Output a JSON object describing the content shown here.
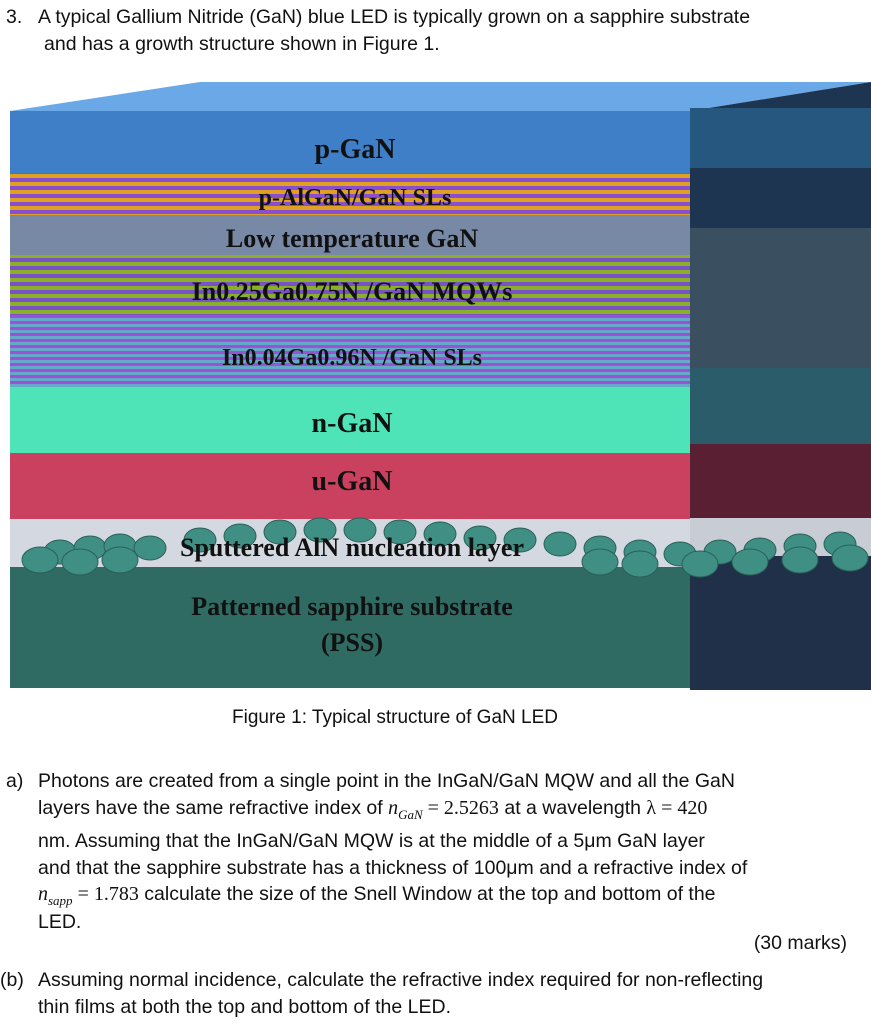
{
  "question": {
    "number": "3.",
    "line1": "A typical Gallium Nitride (GaN) blue LED is typically grown on a sapphire substrate",
    "line2": "and has a growth structure shown in Figure 1."
  },
  "figure": {
    "layers": {
      "p_gan": "p-GaN",
      "p_algan": "p-AlGaN/GaN SLs",
      "low_temp": "Low temperature GaN",
      "mqw": "In0.25Ga0.75N /GaN MQWs",
      "sls": "In0.04Ga0.96N /GaN SLs",
      "n_gan": "n-GaN",
      "u_gan": "u-GaN",
      "nucleation": "Sputtered AlN nucleation layer",
      "pss_line1": "Patterned sapphire substrate",
      "pss_line2": "(PSS)"
    },
    "caption": "Figure 1: Typical structure of GaN LED"
  },
  "part_a": {
    "label": "a)",
    "line1": "Photons are created from a single point in the InGaN/GaN MQW and all the GaN",
    "line2_a": "layers have the same refractive index of ",
    "line2_math1": "n",
    "line2_sub1": "GaN",
    "line2_math2": " = 2.5263",
    "line2_b": " at a wavelength ",
    "line2_math3": "λ = 420",
    "line3": "nm.  Assuming that the InGaN/GaN MQW is at the middle of a 5μm GaN layer",
    "line4": "and that the sapphire substrate has a thickness of 100μm and a refractive index of",
    "line5_math1": "n",
    "line5_sub1": "sapp",
    "line5_math2": " = 1.783",
    "line5_b": " calculate the size of the Snell Window at the top and bottom of the",
    "line6": "LED.",
    "marks": "(30 marks)"
  },
  "part_b": {
    "label": "(b)",
    "line1": "Assuming normal incidence, calculate the refractive index required for non-reflecting",
    "line2": "thin films at both the top and bottom of the LED."
  }
}
